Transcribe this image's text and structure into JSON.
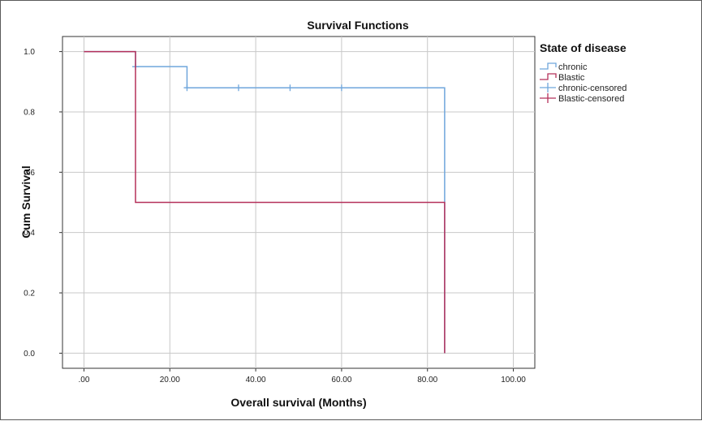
{
  "chart_data": {
    "type": "line",
    "title": "Survival Functions",
    "xlabel": "Overall survival (Months)",
    "ylabel": "Cum Survival",
    "xlim": [
      -5,
      105
    ],
    "ylim": [
      -0.05,
      1.05
    ],
    "x_ticks": [
      0,
      20,
      40,
      60,
      80,
      100
    ],
    "x_tick_labels": [
      ".00",
      "20.00",
      "40.00",
      "60.00",
      "80.00",
      "100.00"
    ],
    "y_ticks": [
      0.0,
      0.2,
      0.4,
      0.6,
      0.8,
      1.0
    ],
    "y_tick_labels": [
      "0.0",
      "0.2",
      "0.4",
      "0.6",
      "0.8",
      "1.0"
    ],
    "grid": true,
    "legend": {
      "title": "State of disease",
      "placement": "right",
      "entries": [
        {
          "label": "chronic",
          "kind": "step",
          "color": "#6fa6dc"
        },
        {
          "label": "Blastic",
          "kind": "step",
          "color": "#b5315a"
        },
        {
          "label": "chronic-censored",
          "kind": "censor",
          "color": "#6fa6dc"
        },
        {
          "label": "Blastic-censored",
          "kind": "censor",
          "color": "#b5315a"
        }
      ]
    },
    "series": [
      {
        "name": "chronic",
        "color": "#6fa6dc",
        "steps": [
          [
            0,
            1.0
          ],
          [
            12,
            0.95
          ],
          [
            24,
            0.88
          ],
          [
            84,
            0.0
          ]
        ],
        "end_x": 84,
        "censored": [
          [
            12,
            0.95
          ],
          [
            24,
            0.88
          ],
          [
            36,
            0.88
          ],
          [
            48,
            0.88
          ],
          [
            60,
            0.88
          ]
        ]
      },
      {
        "name": "Blastic",
        "color": "#b5315a",
        "steps": [
          [
            0,
            1.0
          ],
          [
            12,
            0.5
          ],
          [
            84,
            0.0
          ]
        ],
        "end_x": 84,
        "censored": []
      }
    ]
  }
}
